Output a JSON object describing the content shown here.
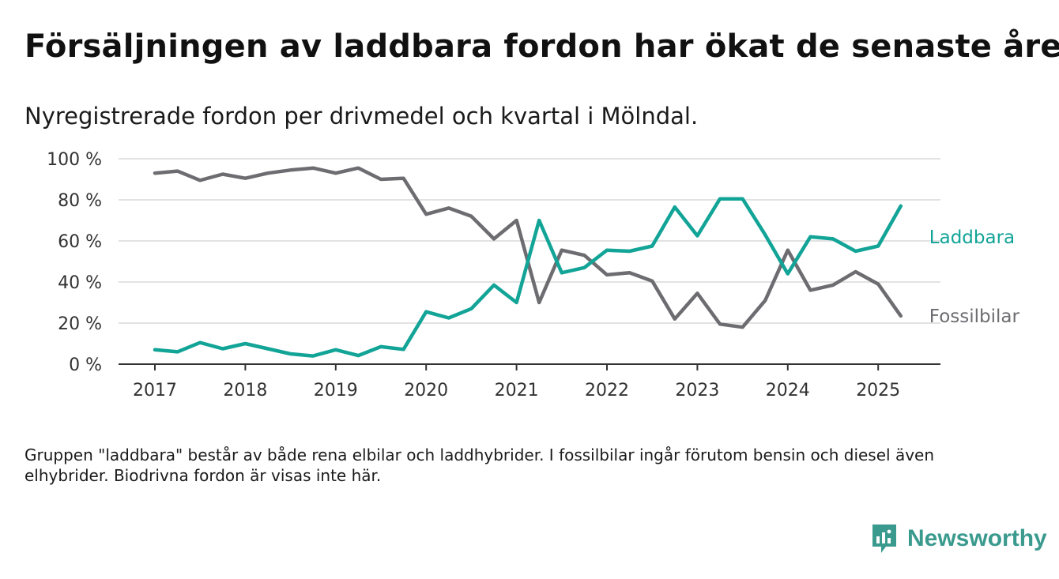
{
  "header": {
    "title": "Försäljningen av laddbara fordon har ökat de senaste åren",
    "subtitle": "Nyregistrerade fordon per drivmedel och kvartal i Mölndal."
  },
  "footer": {
    "note": "Gruppen \"laddbara\" består av både rena elbilar och laddhybrider. I fossilbilar ingår förutom bensin och diesel även elhybrider. Biodrivna fordon är visas inte här.",
    "brand": "Newsworthy",
    "brand_color": "#3a9a8e"
  },
  "chart_data": {
    "type": "line",
    "title": "Försäljningen av laddbara fordon har ökat de senaste åren",
    "subtitle": "Nyregistrerade fordon per drivmedel och kvartal i Mölndal.",
    "xlabel": "",
    "ylabel": "",
    "x": [
      "2017Q1",
      "2017Q2",
      "2017Q3",
      "2017Q4",
      "2018Q1",
      "2018Q2",
      "2018Q3",
      "2018Q4",
      "2019Q1",
      "2019Q2",
      "2019Q3",
      "2019Q4",
      "2020Q1",
      "2020Q2",
      "2020Q3",
      "2020Q4",
      "2021Q1",
      "2021Q2",
      "2021Q3",
      "2021Q4",
      "2022Q1",
      "2022Q2",
      "2022Q3",
      "2022Q4",
      "2023Q1",
      "2023Q2",
      "2023Q3",
      "2023Q4",
      "2024Q1",
      "2024Q2",
      "2024Q3",
      "2024Q4",
      "2025Q1",
      "2025Q2"
    ],
    "x_ticks": [
      "2017",
      "2018",
      "2019",
      "2020",
      "2021",
      "2022",
      "2023",
      "2024",
      "2025"
    ],
    "y_ticks": [
      "0 %",
      "20 %",
      "40 %",
      "60 %",
      "80 %",
      "100 %"
    ],
    "ylim": [
      0,
      100
    ],
    "grid": true,
    "legend": "line-end labels",
    "series": [
      {
        "name": "Laddbara",
        "color": "#12a497",
        "values": [
          7,
          6,
          10.5,
          7.5,
          10,
          7.5,
          5,
          4,
          7,
          4.2,
          8.5,
          7.2,
          25.5,
          22.5,
          27,
          38.5,
          30,
          70,
          44.5,
          47,
          55.5,
          55,
          57.5,
          76.5,
          62.5,
          80.5,
          80.5,
          63,
          44,
          62,
          61,
          55,
          57.5,
          77
        ]
      },
      {
        "name": "Fossilbilar",
        "color": "#6d6c71",
        "values": [
          93,
          94,
          89.5,
          92.5,
          90.5,
          93,
          94.5,
          95.5,
          93,
          95.5,
          90,
          90.5,
          73,
          76,
          72,
          61,
          70,
          30,
          55.5,
          53,
          43.5,
          44.5,
          40.5,
          22,
          34.5,
          19.5,
          18,
          31,
          55.5,
          36,
          38.5,
          45,
          39,
          23.5
        ]
      }
    ]
  }
}
